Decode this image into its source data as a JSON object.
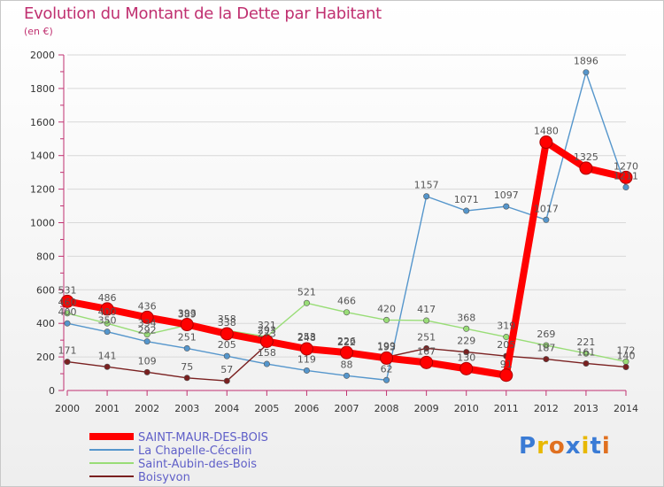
{
  "title": "Evolution du Montant de la Dette par Habitant",
  "subtitle": "(en €)",
  "brand": {
    "text": "Proxiti",
    "letter_colors": [
      "#3a7bd5",
      "#e8b800",
      "#e07020",
      "#3a7bd5",
      "#e8b800",
      "#3a7bd5",
      "#e07020"
    ]
  },
  "chart_data": {
    "type": "line",
    "x": [
      "2000",
      "2001",
      "2002",
      "2003",
      "2004",
      "2005",
      "2006",
      "2007",
      "2008",
      "2009",
      "2010",
      "2011",
      "2012",
      "2013",
      "2014"
    ],
    "ylim": [
      0,
      2000
    ],
    "yticks": [
      "0",
      "200",
      "400",
      "600",
      "800",
      "1000",
      "1200",
      "1400",
      "1600",
      "1800",
      "2000"
    ],
    "grid": true,
    "legend_position": "bottom-left",
    "series": [
      {
        "name": "SAINT-MAUR-DES-BOIS",
        "color": "#ff0000",
        "values": [
          531,
          486,
          436,
          393,
          338,
          293,
          248,
          226,
          193,
          167,
          130,
          91,
          1480,
          1325,
          1270
        ],
        "labels": [
          "531",
          "486",
          "436",
          "393",
          "338",
          "293",
          "248",
          "226",
          "193",
          "167",
          "130",
          "91",
          "1480",
          "1325",
          "1270"
        ]
      },
      {
        "name": "La Chapelle-Cécelin",
        "color": "#5596cc",
        "values": [
          400,
          350,
          292,
          251,
          205,
          158,
          119,
          88,
          62,
          1157,
          1071,
          1097,
          1017,
          1896,
          1211
        ],
        "labels": [
          "400",
          "350",
          "292",
          "251",
          "205",
          "158",
          "119",
          "88",
          "62",
          "1157",
          "1071",
          "1097",
          "1017",
          "1896",
          "1211"
        ]
      },
      {
        "name": "Saint-Aubin-des-Bois",
        "color": "#99dd77",
        "values": [
          460,
          400,
          334,
          389,
          358,
          321,
          521,
          466,
          420,
          417,
          368,
          319,
          269,
          221,
          172
        ],
        "labels": [
          "460",
          "400",
          "334",
          "389",
          "358",
          "321",
          "521",
          "466",
          "420",
          "417",
          "368",
          "319",
          "269",
          "221",
          "172"
        ]
      },
      {
        "name": "Boisyvon",
        "color": "#7a2020",
        "values": [
          171,
          141,
          109,
          75,
          57,
          273,
          253,
          222,
          199,
          251,
          229,
          205,
          187,
          161,
          140
        ],
        "labels": [
          "171",
          "141",
          "109",
          "75",
          "57",
          "273",
          "253",
          "222",
          "199",
          "251",
          "229",
          "205",
          "187",
          "161",
          "140"
        ]
      }
    ]
  }
}
